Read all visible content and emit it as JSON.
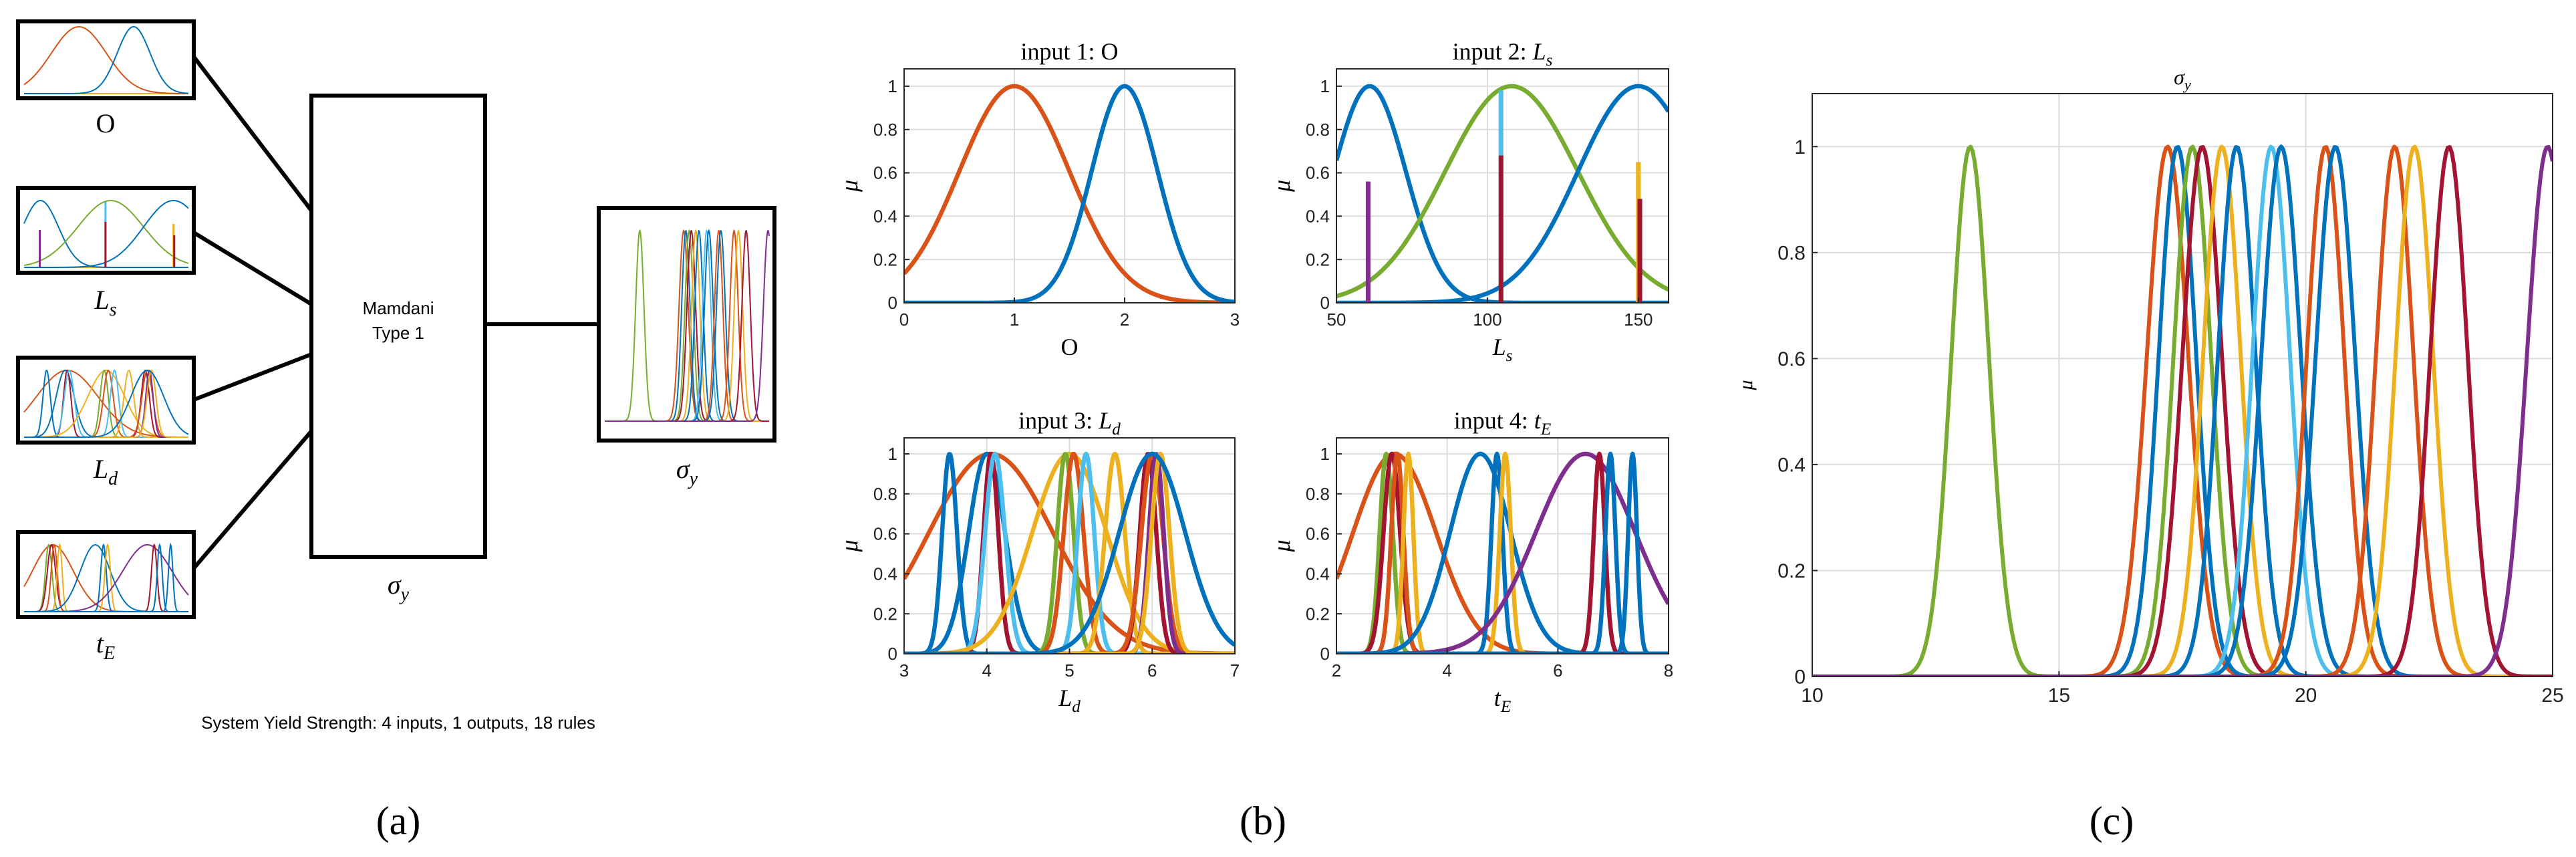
{
  "panel_labels": [
    "(a)",
    "(b)",
    "(c)"
  ],
  "colors": [
    "#0072BD",
    "#D95319",
    "#EDB120",
    "#7E2F8E",
    "#77AC30",
    "#4DBEEE",
    "#A2142F"
  ],
  "fis": {
    "system_name": "Mamdani",
    "system_type": "Type 1",
    "summary": "System Yield Strength: 4 inputs, 1 outputs, 18 rules",
    "input_labels": [
      "O",
      "L_s",
      "L_d",
      "t_E"
    ],
    "output_label": "σ_y"
  },
  "chart_data": [
    {
      "type": "line",
      "id": "input1",
      "title": "input 1: O",
      "title_prefix": "input 1: ",
      "title_var": "O",
      "title_sub": "",
      "xlabel_var": "O",
      "xlabel_sub": "",
      "ylabel": "μ",
      "xlim": [
        0,
        3
      ],
      "ylim": [
        0,
        1.08
      ],
      "xticks": [
        0,
        1,
        2,
        3
      ],
      "yticks": [
        0,
        0.2,
        0.4,
        0.6,
        0.8,
        1
      ],
      "ytick_labels": [
        "0",
        "0.2",
        "0.4",
        "0.6",
        "0.8",
        "1"
      ],
      "grid": true,
      "series": [
        {
          "shape": "gauss",
          "center": 1.0,
          "sigma": 0.5,
          "color": "#D95319"
        },
        {
          "shape": "gauss",
          "center": 2.0,
          "sigma": 0.3,
          "color": "#0072BD"
        }
      ]
    },
    {
      "type": "line",
      "id": "input2",
      "title": "input 2: Ls",
      "title_prefix": "input 2: ",
      "title_var": "L",
      "title_sub": "s",
      "xlabel_var": "L",
      "xlabel_sub": "s",
      "ylabel": "μ",
      "xlim": [
        50,
        160
      ],
      "ylim": [
        0,
        1.08
      ],
      "xticks": [
        50,
        100,
        150
      ],
      "yticks": [
        0,
        0.2,
        0.4,
        0.6,
        0.8,
        1
      ],
      "ytick_labels": [
        "0",
        "0.2",
        "0.4",
        "0.6",
        "0.8",
        "1"
      ],
      "grid": true,
      "series": [
        {
          "shape": "gauss",
          "center": 61,
          "sigma": 12,
          "color": "#0072BD"
        },
        {
          "shape": "gauss",
          "center": 108,
          "sigma": 22,
          "color": "#77AC30"
        },
        {
          "shape": "gauss",
          "center": 150,
          "sigma": 20,
          "color": "#0072BD"
        },
        {
          "shape": "spike",
          "center": 60.5,
          "height": 0.56,
          "color": "#7E2F8E"
        },
        {
          "shape": "spike",
          "center": 104.5,
          "height": 0.98,
          "color": "#4DBEEE"
        },
        {
          "shape": "spike",
          "center": 104.5,
          "height": 0.68,
          "color": "#A2142F"
        },
        {
          "shape": "spike",
          "center": 150,
          "height": 0.65,
          "color": "#EDB120"
        },
        {
          "shape": "spike",
          "center": 150.5,
          "height": 0.48,
          "color": "#A2142F"
        }
      ]
    },
    {
      "type": "line",
      "id": "input3",
      "title": "input 3: Ld",
      "title_prefix": "input 3: ",
      "title_var": "L",
      "title_sub": "d",
      "xlabel_var": "L",
      "xlabel_sub": "d",
      "ylabel": "μ",
      "xlim": [
        3,
        7
      ],
      "ylim": [
        0,
        1.08
      ],
      "xticks": [
        3,
        4,
        5,
        6,
        7
      ],
      "yticks": [
        0,
        0.2,
        0.4,
        0.6,
        0.8,
        1
      ],
      "ytick_labels": [
        "0",
        "0.2",
        "0.4",
        "0.6",
        "0.8",
        "1"
      ],
      "grid": true,
      "series": [
        {
          "shape": "gauss",
          "center": 4.05,
          "sigma": 0.75,
          "color": "#D95319"
        },
        {
          "shape": "gauss",
          "center": 3.55,
          "sigma": 0.09,
          "color": "#0072BD"
        },
        {
          "shape": "gauss",
          "center": 4.0,
          "sigma": 0.22,
          "color": "#0072BD"
        },
        {
          "shape": "gauss",
          "center": 4.05,
          "sigma": 0.09,
          "color": "#A2142F"
        },
        {
          "shape": "gauss",
          "center": 4.1,
          "sigma": 0.12,
          "color": "#4DBEEE"
        },
        {
          "shape": "gauss",
          "center": 5.0,
          "sigma": 0.45,
          "color": "#EDB120"
        },
        {
          "shape": "gauss",
          "center": 4.95,
          "sigma": 0.1,
          "color": "#77AC30"
        },
        {
          "shape": "gauss",
          "center": 5.05,
          "sigma": 0.12,
          "color": "#D95319"
        },
        {
          "shape": "gauss",
          "center": 5.2,
          "sigma": 0.1,
          "color": "#4DBEEE"
        },
        {
          "shape": "gauss",
          "center": 5.55,
          "sigma": 0.12,
          "color": "#EDB120"
        },
        {
          "shape": "gauss",
          "center": 5.95,
          "sigma": 0.1,
          "color": "#A2142F"
        },
        {
          "shape": "gauss",
          "center": 6.0,
          "sigma": 0.13,
          "color": "#D95319"
        },
        {
          "shape": "gauss",
          "center": 6.05,
          "sigma": 0.09,
          "color": "#7E2F8E"
        },
        {
          "shape": "gauss",
          "center": 6.1,
          "sigma": 0.11,
          "color": "#EDB120"
        },
        {
          "shape": "gauss",
          "center": 6.0,
          "sigma": 0.4,
          "color": "#0072BD"
        }
      ]
    },
    {
      "type": "line",
      "id": "input4",
      "title": "input 4: tE",
      "title_prefix": "input 4: ",
      "title_var": "t",
      "title_sub": "E",
      "xlabel_var": "t",
      "xlabel_sub": "E",
      "ylabel": "μ",
      "xlim": [
        2,
        8
      ],
      "ylim": [
        0,
        1.08
      ],
      "xticks": [
        2,
        4,
        6,
        8
      ],
      "yticks": [
        0,
        0.2,
        0.4,
        0.6,
        0.8,
        1
      ],
      "ytick_labels": [
        "0",
        "0.2",
        "0.4",
        "0.6",
        "0.8",
        "1"
      ],
      "grid": true,
      "series": [
        {
          "shape": "gauss",
          "center": 3.05,
          "sigma": 0.75,
          "color": "#D95319"
        },
        {
          "shape": "gauss",
          "center": 2.9,
          "sigma": 0.12,
          "color": "#77AC30"
        },
        {
          "shape": "gauss",
          "center": 3.0,
          "sigma": 0.15,
          "color": "#A2142F"
        },
        {
          "shape": "gauss",
          "center": 3.1,
          "sigma": 0.11,
          "color": "#D95319"
        },
        {
          "shape": "gauss",
          "center": 3.3,
          "sigma": 0.09,
          "color": "#EDB120"
        },
        {
          "shape": "gauss",
          "center": 4.6,
          "sigma": 0.55,
          "color": "#0072BD"
        },
        {
          "shape": "gauss",
          "center": 4.9,
          "sigma": 0.1,
          "color": "#0072BD"
        },
        {
          "shape": "gauss",
          "center": 5.05,
          "sigma": 0.1,
          "color": "#EDB120"
        },
        {
          "shape": "gauss",
          "center": 6.5,
          "sigma": 0.9,
          "color": "#7E2F8E"
        },
        {
          "shape": "gauss",
          "center": 6.75,
          "sigma": 0.1,
          "color": "#A2142F"
        },
        {
          "shape": "gauss",
          "center": 6.95,
          "sigma": 0.09,
          "color": "#0072BD"
        },
        {
          "shape": "gauss",
          "center": 7.35,
          "sigma": 0.08,
          "color": "#0072BD"
        }
      ]
    },
    {
      "type": "line",
      "id": "output",
      "title": "σy",
      "title_prefix": "",
      "title_var": "σ",
      "title_sub": "y",
      "xlabel_var": "",
      "xlabel_sub": "",
      "ylabel": "μ",
      "xlim": [
        10,
        25
      ],
      "ylim": [
        0,
        1.1
      ],
      "xticks": [
        10,
        15,
        20,
        25
      ],
      "yticks": [
        0,
        0.2,
        0.4,
        0.6,
        0.8,
        1
      ],
      "ytick_labels": [
        "0",
        "0.2",
        "0.4",
        "0.6",
        "0.8",
        "1"
      ],
      "grid": true,
      "series": [
        {
          "shape": "gauss",
          "center": 13.2,
          "sigma": 0.38,
          "color": "#77AC30"
        },
        {
          "shape": "gauss",
          "center": 17.2,
          "sigma": 0.42,
          "color": "#D95319"
        },
        {
          "shape": "gauss",
          "center": 17.4,
          "sigma": 0.38,
          "color": "#0072BD"
        },
        {
          "shape": "gauss",
          "center": 17.7,
          "sigma": 0.38,
          "color": "#77AC30"
        },
        {
          "shape": "gauss",
          "center": 17.9,
          "sigma": 0.4,
          "color": "#A2142F"
        },
        {
          "shape": "gauss",
          "center": 18.3,
          "sigma": 0.38,
          "color": "#EDB120"
        },
        {
          "shape": "gauss",
          "center": 18.6,
          "sigma": 0.38,
          "color": "#0072BD"
        },
        {
          "shape": "gauss",
          "center": 19.3,
          "sigma": 0.38,
          "color": "#4DBEEE"
        },
        {
          "shape": "gauss",
          "center": 19.5,
          "sigma": 0.4,
          "color": "#0072BD"
        },
        {
          "shape": "gauss",
          "center": 20.4,
          "sigma": 0.38,
          "color": "#D95319"
        },
        {
          "shape": "gauss",
          "center": 20.6,
          "sigma": 0.4,
          "color": "#0072BD"
        },
        {
          "shape": "gauss",
          "center": 21.8,
          "sigma": 0.38,
          "color": "#D95319"
        },
        {
          "shape": "gauss",
          "center": 22.2,
          "sigma": 0.38,
          "color": "#EDB120"
        },
        {
          "shape": "gauss",
          "center": 22.9,
          "sigma": 0.38,
          "color": "#A2142F"
        },
        {
          "shape": "gauss",
          "center": 24.9,
          "sigma": 0.42,
          "color": "#7E2F8E"
        }
      ]
    }
  ]
}
